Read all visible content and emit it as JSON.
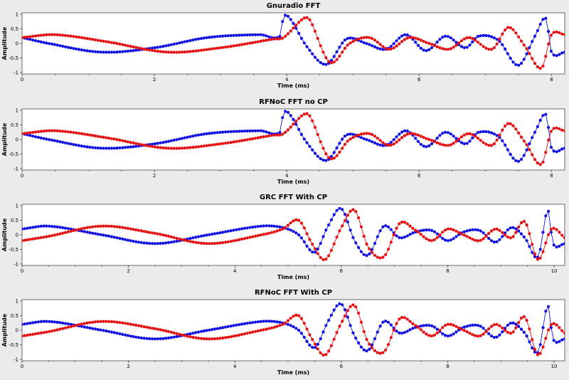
{
  "chart_data": [
    {
      "type": "line",
      "title": "Gnuradio FFT",
      "xlabel": "Time (ms)",
      "ylabel": "Amplitude",
      "xlim": [
        0,
        8.2
      ],
      "ylim": [
        -1.05,
        1.05
      ],
      "xticks": [
        0,
        2,
        4,
        6,
        8
      ],
      "yticks": [
        -1,
        -0.5,
        0,
        0.5,
        1
      ],
      "ytick_labels": [
        "-1",
        "-0.5",
        "0",
        "0.5",
        "1"
      ],
      "grid": false,
      "series": [
        {
          "color": "#1010e6",
          "x": [
            0,
            0.4,
            1.2,
            2.0,
            2.8,
            3.6,
            3.9,
            3.95,
            4.05,
            4.3,
            4.6,
            4.9,
            5.2,
            5.5,
            5.8,
            6.1,
            6.4,
            6.7,
            6.9,
            7.2,
            7.5,
            7.75,
            7.92,
            8.0,
            8.2
          ],
          "y": [
            0.2,
            0.0,
            -0.3,
            -0.15,
            0.2,
            0.3,
            0.25,
            0.9,
            0.85,
            -0.1,
            -0.72,
            0.15,
            0.0,
            -0.2,
            0.3,
            -0.25,
            0.25,
            -0.15,
            0.25,
            0.1,
            -0.75,
            0.25,
            0.85,
            -0.3,
            -0.3
          ]
        },
        {
          "color": "#e61010",
          "x": [
            0,
            0.5,
            1.3,
            2.2,
            3.0,
            3.8,
            3.95,
            4.25,
            4.35,
            4.65,
            4.95,
            5.25,
            5.55,
            5.85,
            6.15,
            6.45,
            6.75,
            7.1,
            7.35,
            7.6,
            7.85,
            8.0,
            8.2
          ],
          "y": [
            0.2,
            0.3,
            0.05,
            -0.3,
            -0.15,
            0.15,
            0.2,
            0.85,
            0.8,
            -0.65,
            0.0,
            0.2,
            -0.2,
            0.2,
            0.0,
            -0.2,
            0.2,
            -0.2,
            0.55,
            -0.1,
            -0.85,
            0.3,
            0.3
          ]
        }
      ]
    },
    {
      "type": "line",
      "title": "RFNoC FFT no CP",
      "xlabel": "Time (ms)",
      "ylabel": "Amplitude",
      "xlim": [
        0,
        8.2
      ],
      "ylim": [
        -1.05,
        1.05
      ],
      "xticks": [
        0,
        2,
        4,
        6,
        8
      ],
      "yticks": [
        -1,
        -0.5,
        0,
        0.5,
        1
      ],
      "ytick_labels": [
        "-1",
        "-0.5",
        "0",
        "0.5",
        "1"
      ],
      "grid": false,
      "series": [
        {
          "color": "#1010e6",
          "x": [
            0,
            0.4,
            1.2,
            2.0,
            2.8,
            3.6,
            3.9,
            3.95,
            4.05,
            4.3,
            4.6,
            4.9,
            5.2,
            5.5,
            5.8,
            6.1,
            6.4,
            6.7,
            6.9,
            7.2,
            7.5,
            7.75,
            7.92,
            8.0,
            8.2
          ],
          "y": [
            0.2,
            0.0,
            -0.3,
            -0.15,
            0.2,
            0.3,
            0.25,
            0.9,
            0.85,
            -0.1,
            -0.72,
            0.15,
            0.0,
            -0.2,
            0.3,
            -0.25,
            0.25,
            -0.15,
            0.25,
            0.1,
            -0.75,
            0.25,
            0.85,
            -0.3,
            -0.3
          ]
        },
        {
          "color": "#e61010",
          "x": [
            0,
            0.5,
            1.3,
            2.2,
            3.0,
            3.8,
            3.95,
            4.25,
            4.35,
            4.65,
            4.95,
            5.25,
            5.55,
            5.85,
            6.15,
            6.45,
            6.75,
            7.1,
            7.35,
            7.6,
            7.85,
            8.0,
            8.2
          ],
          "y": [
            0.2,
            0.3,
            0.05,
            -0.3,
            -0.15,
            0.15,
            0.2,
            0.85,
            0.8,
            -0.65,
            0.0,
            0.2,
            -0.2,
            0.2,
            0.0,
            -0.2,
            0.2,
            -0.2,
            0.55,
            -0.1,
            -0.85,
            0.3,
            0.3
          ]
        }
      ]
    },
    {
      "type": "line",
      "title": "GRC FFT With CP",
      "xlabel": "Time (ms)",
      "ylabel": "Amplitude",
      "xlim": [
        0,
        10.2
      ],
      "ylim": [
        -1.05,
        1.05
      ],
      "xticks": [
        0,
        2,
        4,
        6,
        8,
        10
      ],
      "yticks": [
        -1,
        -0.5,
        0,
        0.5,
        1
      ],
      "ytick_labels": [
        "-1",
        "-0.5",
        "0",
        "0.5",
        "1"
      ],
      "grid": false,
      "series": [
        {
          "color": "#1010e6",
          "x": [
            0,
            0.5,
            1.5,
            2.5,
            3.5,
            4.5,
            4.9,
            5.2,
            5.5,
            5.75,
            6.0,
            6.25,
            6.5,
            6.8,
            7.1,
            7.4,
            7.7,
            8.0,
            8.3,
            8.6,
            8.9,
            9.2,
            9.45,
            9.7,
            9.88,
            9.98,
            10.2
          ],
          "y": [
            0.2,
            0.3,
            0.0,
            -0.3,
            0.0,
            0.3,
            0.25,
            0.0,
            -0.6,
            0.3,
            0.9,
            -0.2,
            -0.7,
            0.3,
            -0.1,
            0.1,
            0.15,
            -0.2,
            0.1,
            0.15,
            -0.25,
            0.25,
            -0.1,
            -0.75,
            0.85,
            -0.3,
            -0.3
          ]
        },
        {
          "color": "#e61010",
          "x": [
            0,
            0.5,
            1.5,
            2.5,
            3.5,
            4.5,
            4.9,
            5.2,
            5.45,
            5.7,
            6.0,
            6.25,
            6.5,
            6.8,
            7.1,
            7.4,
            7.7,
            8.0,
            8.3,
            8.6,
            8.9,
            9.2,
            9.45,
            9.7,
            9.95,
            10.2
          ],
          "y": [
            -0.2,
            -0.05,
            0.3,
            0.05,
            -0.3,
            0.0,
            0.2,
            0.5,
            -0.3,
            -0.85,
            0.25,
            0.85,
            -0.4,
            -0.75,
            0.4,
            0.15,
            -0.2,
            0.2,
            0.0,
            -0.2,
            0.2,
            -0.1,
            0.45,
            -0.85,
            0.2,
            -0.1
          ]
        }
      ]
    },
    {
      "type": "line",
      "title": "RFNoC FFT With CP",
      "xlabel": "Time (ms)",
      "ylabel": "Amplitude",
      "xlim": [
        0,
        10.2
      ],
      "ylim": [
        -1.05,
        1.05
      ],
      "xticks": [
        0,
        2,
        4,
        6,
        8,
        10
      ],
      "yticks": [
        -1,
        -0.5,
        0,
        0.5,
        1
      ],
      "ytick_labels": [
        "-1",
        "-0.5",
        "0",
        "0.5",
        "1"
      ],
      "grid": false,
      "series": [
        {
          "color": "#1010e6",
          "x": [
            0,
            0.5,
            1.5,
            2.5,
            3.5,
            4.5,
            4.9,
            5.2,
            5.5,
            5.75,
            6.0,
            6.25,
            6.5,
            6.8,
            7.1,
            7.4,
            7.7,
            8.0,
            8.3,
            8.6,
            8.9,
            9.2,
            9.45,
            9.7,
            9.88,
            9.98,
            10.2
          ],
          "y": [
            0.2,
            0.3,
            0.0,
            -0.3,
            0.0,
            0.3,
            0.25,
            0.0,
            -0.6,
            0.3,
            0.9,
            -0.2,
            -0.7,
            0.3,
            -0.1,
            0.1,
            0.15,
            -0.2,
            0.1,
            0.15,
            -0.25,
            0.25,
            -0.1,
            -0.75,
            0.85,
            -0.3,
            -0.3
          ]
        },
        {
          "color": "#e61010",
          "x": [
            0,
            0.5,
            1.5,
            2.5,
            3.5,
            4.5,
            4.9,
            5.2,
            5.45,
            5.7,
            6.0,
            6.25,
            6.5,
            6.8,
            7.1,
            7.4,
            7.7,
            8.0,
            8.3,
            8.6,
            8.9,
            9.2,
            9.45,
            9.7,
            9.95,
            10.2
          ],
          "y": [
            -0.2,
            -0.05,
            0.3,
            0.05,
            -0.3,
            0.0,
            0.2,
            0.5,
            -0.3,
            -0.85,
            0.25,
            0.85,
            -0.4,
            -0.75,
            0.4,
            0.15,
            -0.2,
            0.2,
            0.0,
            -0.2,
            0.2,
            -0.1,
            0.45,
            -0.85,
            0.2,
            -0.1
          ]
        }
      ]
    }
  ]
}
